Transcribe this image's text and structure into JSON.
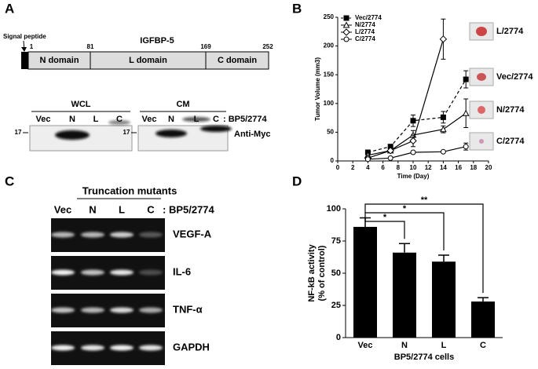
{
  "panel_a": {
    "letter": "A",
    "title": "IGFBP-5",
    "signal_peptide": "Signal peptide",
    "domains": [
      {
        "label": "N domain",
        "start": "1"
      },
      {
        "label": "L domain",
        "start": "81"
      },
      {
        "label": "C domain",
        "start": "169"
      }
    ],
    "end": "252",
    "groups": [
      {
        "label": "WCL",
        "lanes": [
          "Vec",
          "N",
          "L",
          "C"
        ],
        "marker": "17"
      },
      {
        "label": "CM",
        "lanes": [
          "Vec",
          "N",
          "L",
          "C"
        ],
        "marker": "17"
      }
    ],
    "lane_suffix": ": BP5/2774",
    "antibody": "Anti-Myc"
  },
  "panel_b": {
    "letter": "B"
  },
  "panel_c": {
    "letter": "C",
    "title": "Truncation mutants",
    "lanes": [
      "Vec",
      "N",
      "L",
      "C"
    ],
    "lane_suffix": ": BP5/2774",
    "genes": [
      "VEGF-A",
      "IL-6",
      "TNF-α",
      "GAPDH"
    ]
  },
  "panel_d": {
    "letter": "D"
  },
  "chart_data": [
    {
      "type": "line",
      "xlabel": "Time (Day)",
      "ylabel": "Tumor Volume (mm3)",
      "x": [
        4,
        7,
        10,
        14,
        17
      ],
      "xlim": [
        0,
        20
      ],
      "xticks": [
        0,
        2,
        4,
        6,
        8,
        10,
        12,
        14,
        16,
        18,
        20
      ],
      "ylim": [
        0,
        250
      ],
      "yticks": [
        0,
        50,
        100,
        150,
        200,
        250
      ],
      "legend": "upper left",
      "series": [
        {
          "name": "Vec/2774",
          "color": "#000000",
          "marker": "square",
          "filled": true,
          "dashed": true,
          "values": [
            15,
            25,
            70,
            76,
            142
          ],
          "errors": [
            null,
            null,
            10,
            10,
            15
          ]
        },
        {
          "name": "N/2774",
          "color": "#000000",
          "marker": "triangle",
          "filled": false,
          "dashed": false,
          "values": [
            10,
            18,
            45,
            55,
            83
          ],
          "errors": [
            null,
            null,
            8,
            6,
            25
          ]
        },
        {
          "name": "L/2774",
          "color": "#000000",
          "marker": "diamond",
          "filled": false,
          "dashed": false,
          "values": [
            5,
            18,
            35,
            212,
            null
          ],
          "errors": [
            null,
            null,
            10,
            35,
            null
          ]
        },
        {
          "name": "C/2774",
          "color": "#000000",
          "marker": "circle",
          "filled": false,
          "dashed": false,
          "values": [
            3,
            5,
            15,
            16,
            25
          ],
          "errors": [
            null,
            null,
            null,
            null,
            6
          ]
        }
      ]
    },
    {
      "type": "bar",
      "xlabel": "BP5/2774 cells",
      "ylabel": [
        "NF-kB activity",
        "(% of control)"
      ],
      "categories": [
        "Vec",
        "N",
        "L",
        "C"
      ],
      "values": [
        86,
        66,
        59,
        28
      ],
      "errors": [
        7,
        7,
        5,
        3
      ],
      "color": "#000000",
      "ylim": [
        0,
        100
      ],
      "yticks": [
        0,
        25,
        50,
        75,
        100
      ],
      "significance": [
        "*",
        "*",
        "**"
      ]
    }
  ]
}
